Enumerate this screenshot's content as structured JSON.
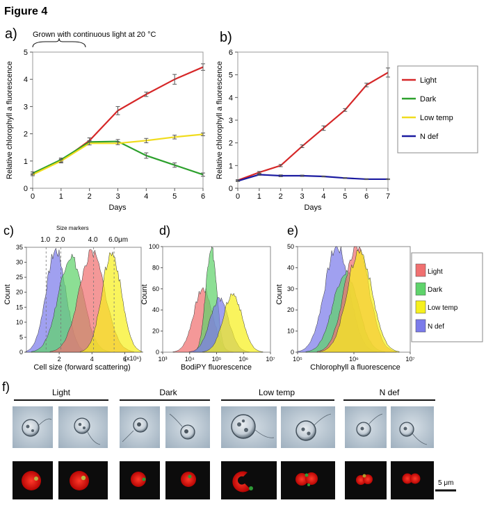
{
  "figure_title": "Figure 4",
  "panel_labels": {
    "a": "a)",
    "b": "b)",
    "c": "c)",
    "d": "d)",
    "e": "e)",
    "f": "f)"
  },
  "annotation_a": "Grown with continuous light at 20 °C",
  "colors": {
    "light": "#d62728",
    "dark": "#2ca02c",
    "low_temp": "#f0dc1e",
    "n_def": "#1a1aa0"
  },
  "hist_colors": {
    "light": "#f07070",
    "dark": "#5fd36b",
    "low_temp": "#f6f01e",
    "n_def": "#7b7bea"
  },
  "legend_top": [
    "Light",
    "Dark",
    "Low temp",
    "N def"
  ],
  "legend_bottom": [
    "Light",
    "Dark",
    "Low temp",
    "N def"
  ],
  "chart_data": [
    {
      "id": "a",
      "type": "line",
      "xlabel": "Days",
      "ylabel": "Relative chlorophyll a fluorescence",
      "xlim": [
        0,
        6
      ],
      "ylim": [
        0,
        5
      ],
      "xticks": [
        "0",
        "1",
        "2",
        "3",
        "4",
        "5",
        "6"
      ],
      "yticks": [
        "0",
        "1",
        "2",
        "3",
        "4",
        "5"
      ],
      "grid": false,
      "series": [
        {
          "name": "Light",
          "x": [
            0,
            1,
            2,
            3,
            4,
            5,
            6
          ],
          "y": [
            0.55,
            1.0,
            1.75,
            2.85,
            3.45,
            4.0,
            4.45
          ],
          "err": [
            0.05,
            0.07,
            0.1,
            0.15,
            0.08,
            0.18,
            0.12
          ]
        },
        {
          "name": "Dark",
          "x": [
            0,
            1,
            2,
            3,
            4,
            5,
            6
          ],
          "y": [
            0.55,
            1.05,
            1.7,
            1.72,
            1.2,
            0.85,
            0.5
          ],
          "err": [
            0.05,
            0.06,
            0.05,
            0.07,
            0.1,
            0.08,
            0.06
          ]
        },
        {
          "name": "Low temp",
          "x": [
            0,
            1,
            2,
            3,
            4,
            5,
            6
          ],
          "y": [
            0.5,
            1.0,
            1.65,
            1.65,
            1.75,
            1.88,
            1.98
          ],
          "err": [
            0.04,
            0.05,
            0.06,
            0.05,
            0.08,
            0.07,
            0.05
          ]
        }
      ]
    },
    {
      "id": "b",
      "type": "line",
      "xlabel": "Days",
      "ylabel": "Relative chlorophyll a fluorescence",
      "xlim": [
        0,
        7
      ],
      "ylim": [
        0,
        6
      ],
      "xticks": [
        "0",
        "1",
        "2",
        "3",
        "4",
        "5",
        "6",
        "7"
      ],
      "yticks": [
        "0",
        "1",
        "2",
        "3",
        "4",
        "5",
        "6"
      ],
      "grid": false,
      "series": [
        {
          "name": "Light",
          "x": [
            0,
            1,
            2,
            3,
            4,
            5,
            6,
            7
          ],
          "y": [
            0.35,
            0.7,
            1.0,
            1.85,
            2.65,
            3.45,
            4.55,
            5.1
          ],
          "err": [
            0.03,
            0.04,
            0.05,
            0.06,
            0.1,
            0.06,
            0.08,
            0.2
          ]
        },
        {
          "name": "N def",
          "x": [
            0,
            1,
            2,
            3,
            4,
            5,
            6,
            7
          ],
          "y": [
            0.32,
            0.6,
            0.55,
            0.55,
            0.52,
            0.45,
            0.4,
            0.4
          ],
          "err": [
            0.02,
            0.03,
            0.04,
            0.03,
            0.02,
            0.02,
            0.02,
            0.02
          ]
        }
      ]
    },
    {
      "id": "c",
      "type": "area",
      "xlabel": "Cell size (forward scattering)",
      "ylabel": "Count",
      "xlim": [
        0,
        7
      ],
      "ylim": [
        0,
        35
      ],
      "xticks": [
        "2",
        "4",
        "6"
      ],
      "x_unit": "(x10⁶)",
      "yticks": [
        "0",
        "5",
        "10",
        "15",
        "20",
        "25",
        "30",
        "35"
      ],
      "size_markers_title": "Size markers",
      "size_markers": [
        {
          "label": "1.0",
          "x": 1.2
        },
        {
          "label": "2.0",
          "x": 2.1
        },
        {
          "label": "4.0",
          "x": 4.1
        },
        {
          "label": "6.0μm",
          "x": 5.35
        }
      ],
      "series": [
        {
          "name": "N def",
          "peak_x": 1.8,
          "peak_y": 34,
          "width": 0.6
        },
        {
          "name": "Dark",
          "peak_x": 2.7,
          "peak_y": 32,
          "width": 0.75
        },
        {
          "name": "Light",
          "peak_x": 4.0,
          "peak_y": 33,
          "width": 0.8
        },
        {
          "name": "Low temp",
          "peak_x": 5.2,
          "peak_y": 33,
          "width": 0.6
        }
      ]
    },
    {
      "id": "d",
      "type": "area",
      "xlabel": "BodiPY fluorescence",
      "ylabel": "Count",
      "xscale": "log",
      "xlim": [
        3,
        7
      ],
      "ylim": [
        0,
        100
      ],
      "xticks": [
        "10³",
        "10⁴",
        "10⁵",
        "10⁶",
        "10⁷"
      ],
      "yticks": [
        "0",
        "20",
        "40",
        "60",
        "80",
        "100"
      ],
      "series": [
        {
          "name": "Light",
          "peak_x": 4.5,
          "peak_y": 60,
          "width": 0.35
        },
        {
          "name": "Dark",
          "peak_x": 4.8,
          "peak_y": 100,
          "width": 0.2
        },
        {
          "name": "N def",
          "peak_x": 5.1,
          "peak_y": 50,
          "width": 0.35
        },
        {
          "name": "Low temp",
          "peak_x": 5.6,
          "peak_y": 55,
          "width": 0.35
        }
      ]
    },
    {
      "id": "e",
      "type": "area",
      "xlabel": "Chlorophyll a fluorescence",
      "ylabel": "Count",
      "xscale": "log",
      "xlim": [
        5,
        7
      ],
      "ylim": [
        0,
        50
      ],
      "xticks": [
        "10⁵",
        "10⁶",
        "10⁷"
      ],
      "yticks": [
        "0",
        "10",
        "20",
        "30",
        "40",
        "50"
      ],
      "series": [
        {
          "name": "N def",
          "peak_x": 5.7,
          "peak_y": 50,
          "width": 0.22
        },
        {
          "name": "Dark",
          "peak_x": 5.85,
          "peak_y": 38,
          "width": 0.22
        },
        {
          "name": "Light",
          "peak_x": 6.05,
          "peak_y": 50,
          "width": 0.22
        },
        {
          "name": "Low temp",
          "peak_x": 6.1,
          "peak_y": 48,
          "width": 0.22
        }
      ]
    }
  ],
  "micrographs": {
    "groups": [
      "Light",
      "Dark",
      "Low temp",
      "N def"
    ],
    "scale_bar": "5 μm"
  }
}
